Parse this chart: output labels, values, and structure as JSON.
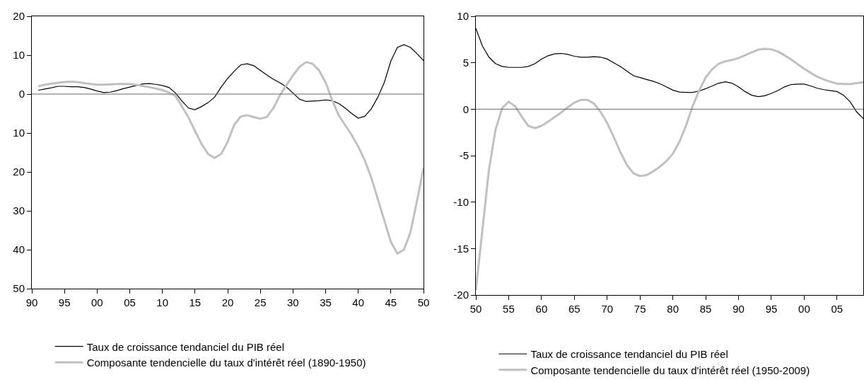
{
  "chart_data": [
    {
      "type": "line",
      "x": [
        1891,
        1892,
        1893,
        1894,
        1895,
        1896,
        1897,
        1898,
        1899,
        1900,
        1901,
        1902,
        1903,
        1904,
        1905,
        1906,
        1907,
        1908,
        1909,
        1910,
        1911,
        1912,
        1913,
        1914,
        1915,
        1916,
        1917,
        1918,
        1919,
        1920,
        1921,
        1922,
        1923,
        1924,
        1925,
        1926,
        1927,
        1928,
        1929,
        1930,
        1931,
        1932,
        1933,
        1934,
        1935,
        1936,
        1937,
        1938,
        1939,
        1940,
        1941,
        1942,
        1943,
        1944,
        1945,
        1946,
        1947,
        1948,
        1949,
        1950
      ],
      "series": [
        {
          "name": "Taux de croissance tendanciel du PIB réel",
          "color": "#000000",
          "values": [
            1.0,
            1.3,
            1.6,
            2.0,
            2.0,
            1.9,
            1.9,
            1.7,
            1.3,
            0.8,
            0.4,
            0.5,
            0.9,
            1.4,
            1.8,
            2.2,
            2.6,
            2.7,
            2.5,
            2.2,
            1.7,
            0.3,
            -1.8,
            -3.6,
            -4,
            -3.2,
            -2.2,
            -0.8,
            1.8,
            4,
            5.9,
            7.5,
            7.8,
            7.3,
            6.1,
            4.9,
            3.8,
            2.9,
            1.8,
            0.3,
            -1.3,
            -1.9,
            -1.8,
            -1.7,
            -1.5,
            -1.7,
            -2.4,
            -3.6,
            -5,
            -6.2,
            -5.7,
            -3.8,
            -0.8,
            3,
            8.5,
            12,
            12.7,
            12,
            10.4,
            8.6
          ]
        },
        {
          "name": "Composante tendencielle du taux d'intérêt réel (1890-1950)",
          "color": "#c0c0c0",
          "values": [
            2,
            2.4,
            2.7,
            2.9,
            3.1,
            3.2,
            3.1,
            2.8,
            2.6,
            2.4,
            2.4,
            2.5,
            2.6,
            2.6,
            2.6,
            2.4,
            2.1,
            1.8,
            1.4,
            1.0,
            0.4,
            -0.5,
            -3.2,
            -6,
            -9.5,
            -12.8,
            -15.4,
            -16.4,
            -15.4,
            -12.3,
            -7.9,
            -5.8,
            -5.4,
            -5.9,
            -6.3,
            -5.9,
            -3.6,
            -0.3,
            2.3,
            4.8,
            7,
            8.2,
            7.8,
            6.1,
            3,
            -1.5,
            -5.4,
            -8,
            -10.5,
            -13.5,
            -17,
            -21.5,
            -27,
            -32.5,
            -38,
            -41,
            -40,
            -35.5,
            -27.5,
            -19
          ]
        }
      ],
      "xlim": [
        1890,
        1950
      ],
      "xticks": [
        {
          "value": 1890,
          "label": "90"
        },
        {
          "value": 1895,
          "label": "95"
        },
        {
          "value": 1900,
          "label": "00"
        },
        {
          "value": 1905,
          "label": "05"
        },
        {
          "value": 1910,
          "label": "10"
        },
        {
          "value": 1915,
          "label": "15"
        },
        {
          "value": 1920,
          "label": "20"
        },
        {
          "value": 1925,
          "label": "25"
        },
        {
          "value": 1930,
          "label": "30"
        },
        {
          "value": 1935,
          "label": "35"
        },
        {
          "value": 1940,
          "label": "40"
        },
        {
          "value": 1945,
          "label": "45"
        },
        {
          "value": 1950,
          "label": "50"
        }
      ],
      "ylim": [
        -50,
        20
      ],
      "yticks": [
        20,
        10,
        0,
        {
          "value": -10,
          "label": "10"
        },
        {
          "value": -20,
          "label": "20"
        },
        {
          "value": -30,
          "label": "30"
        },
        {
          "value": -40,
          "label": "40"
        },
        {
          "value": -50,
          "label": "50"
        }
      ],
      "ref_lines": [
        {
          "axis": "y",
          "value": 0,
          "color": "#666666"
        }
      ],
      "grid": false,
      "legend": "bottom"
    },
    {
      "type": "line",
      "x": [
        1950,
        1951,
        1952,
        1953,
        1954,
        1955,
        1956,
        1957,
        1958,
        1959,
        1960,
        1961,
        1962,
        1963,
        1964,
        1965,
        1966,
        1967,
        1968,
        1969,
        1970,
        1971,
        1972,
        1973,
        1974,
        1975,
        1976,
        1977,
        1978,
        1979,
        1980,
        1981,
        1982,
        1983,
        1984,
        1985,
        1986,
        1987,
        1988,
        1989,
        1990,
        1991,
        1992,
        1993,
        1994,
        1995,
        1996,
        1997,
        1998,
        1999,
        2000,
        2001,
        2002,
        2003,
        2004,
        2005,
        2006,
        2007,
        2008,
        2009
      ],
      "series": [
        {
          "name": "Taux de croissance tendanciel du PIB réel",
          "color": "#000000",
          "values": [
            8.7,
            6.8,
            5.6,
            4.9,
            4.6,
            4.5,
            4.5,
            4.5,
            4.6,
            4.9,
            5.4,
            5.75,
            5.95,
            6.0,
            5.9,
            5.7,
            5.6,
            5.6,
            5.65,
            5.6,
            5.4,
            5.0,
            4.6,
            4.1,
            3.6,
            3.4,
            3.2,
            3.0,
            2.75,
            2.4,
            2.05,
            1.85,
            1.8,
            1.8,
            1.95,
            2.2,
            2.5,
            2.8,
            2.95,
            2.8,
            2.4,
            1.9,
            1.5,
            1.35,
            1.45,
            1.7,
            2.0,
            2.4,
            2.65,
            2.7,
            2.7,
            2.5,
            2.25,
            2.1,
            2.0,
            1.9,
            1.5,
            0.8,
            -0.3,
            -1.0
          ]
        },
        {
          "name": "Composante tendencielle du taux d'intérêt réel (1950-2009)",
          "color": "#c0c0c0",
          "values": [
            -19.5,
            -13,
            -6.5,
            -2.2,
            0.1,
            0.8,
            0.3,
            -0.8,
            -1.8,
            -2.05,
            -1.8,
            -1.35,
            -0.85,
            -0.35,
            0.2,
            0.7,
            1.0,
            1.0,
            0.6,
            -0.3,
            -1.5,
            -3.0,
            -4.6,
            -6.0,
            -6.9,
            -7.2,
            -7.1,
            -6.7,
            -6.2,
            -5.6,
            -4.8,
            -3.5,
            -1.8,
            0.3,
            2.0,
            3.4,
            4.3,
            4.9,
            5.15,
            5.3,
            5.5,
            5.8,
            6.1,
            6.4,
            6.5,
            6.45,
            6.2,
            5.8,
            5.35,
            4.85,
            4.35,
            3.9,
            3.5,
            3.2,
            2.95,
            2.75,
            2.7,
            2.7,
            2.8,
            2.9
          ]
        }
      ],
      "xlim": [
        1950,
        2009
      ],
      "xticks": [
        {
          "value": 1950,
          "label": "50"
        },
        {
          "value": 1955,
          "label": "55"
        },
        {
          "value": 1960,
          "label": "60"
        },
        {
          "value": 1965,
          "label": "65"
        },
        {
          "value": 1970,
          "label": "70"
        },
        {
          "value": 1975,
          "label": "75"
        },
        {
          "value": 1980,
          "label": "80"
        },
        {
          "value": 1985,
          "label": "85"
        },
        {
          "value": 1990,
          "label": "90"
        },
        {
          "value": 1995,
          "label": "95"
        },
        {
          "value": 2000,
          "label": "00"
        },
        {
          "value": 2005,
          "label": "05"
        }
      ],
      "ylim": [
        -20,
        10
      ],
      "yticks": [
        10,
        5,
        0,
        -5,
        -10,
        -15,
        -20
      ],
      "ref_lines": [
        {
          "axis": "y",
          "value": 0,
          "color": "#666666"
        }
      ],
      "grid": false,
      "legend": "bottom"
    }
  ]
}
